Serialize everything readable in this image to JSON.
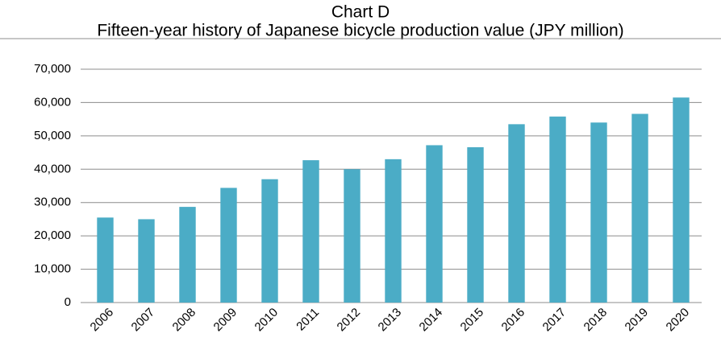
{
  "chart_data": {
    "type": "bar",
    "title": "Chart D",
    "subtitle": "Fifteen-year history of Japanese bicycle production value (JPY million)",
    "categories": [
      "2006",
      "2007",
      "2008",
      "2009",
      "2010",
      "2011",
      "2012",
      "2013",
      "2014",
      "2015",
      "2016",
      "2017",
      "2018",
      "2019",
      "2020"
    ],
    "values": [
      25500,
      25000,
      28700,
      34400,
      37000,
      42700,
      40000,
      43000,
      47200,
      46600,
      53500,
      55800,
      54000,
      56600,
      61500
    ],
    "color": "#4bacc6",
    "ylim": [
      0,
      70000
    ],
    "yticks": [
      0,
      {
        "value": 10000,
        "label": "10,000"
      },
      {
        "value": 20000,
        "label": "20,000"
      },
      {
        "value": 30000,
        "label": "30,000"
      },
      {
        "value": 40000,
        "label": "40,000"
      },
      {
        "value": 50000,
        "label": "50,000"
      },
      {
        "value": 60000,
        "label": "60,000"
      },
      {
        "value": 70000,
        "label": "70,000"
      }
    ],
    "grid": true
  }
}
